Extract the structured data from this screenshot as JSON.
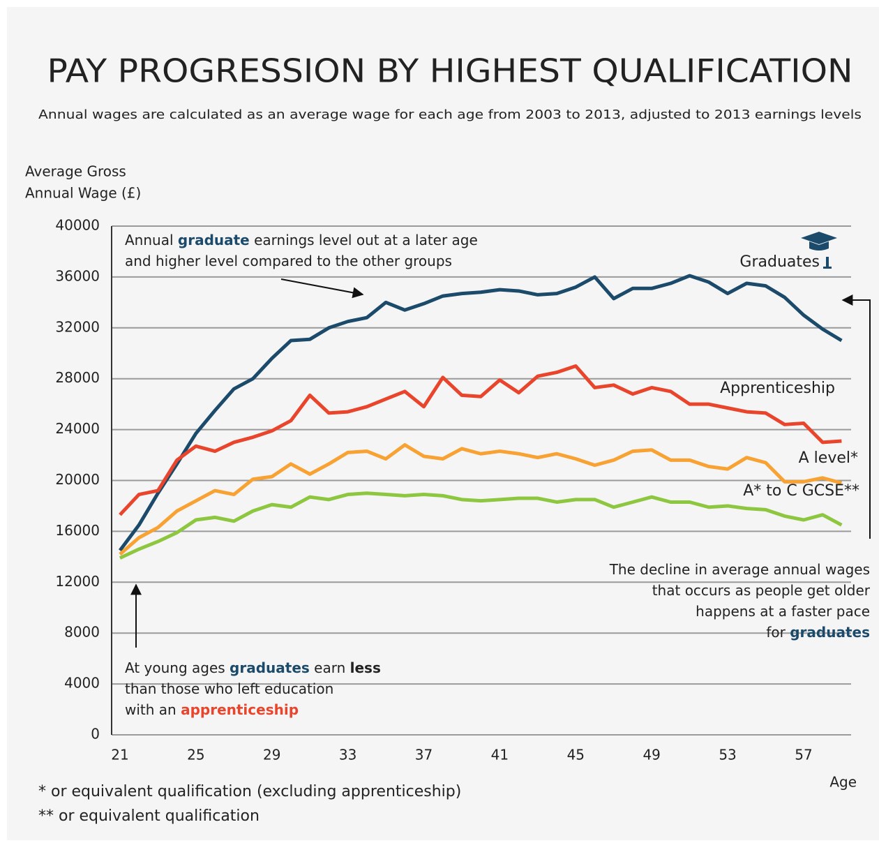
{
  "chart_data": {
    "type": "line",
    "title": "PAY PROGRESSION BY HIGHEST QUALIFICATION",
    "subtitle": "Annual wages are calculated as an average wage for each age from 2003 to 2013, adjusted to 2013 earnings levels",
    "y_label": [
      "Average Gross",
      "Annual Wage (£)"
    ],
    "x_label": "Age",
    "x": [
      21,
      22,
      23,
      24,
      25,
      26,
      27,
      28,
      29,
      30,
      31,
      32,
      33,
      34,
      35,
      36,
      37,
      38,
      39,
      40,
      41,
      42,
      43,
      44,
      45,
      46,
      47,
      48,
      49,
      50,
      51,
      52,
      53,
      54,
      55,
      56,
      57,
      58,
      59
    ],
    "series": [
      {
        "name": "Graduates",
        "color": "#1b4a6b",
        "values": [
          14500,
          16500,
          19000,
          21300,
          23700,
          25500,
          27200,
          28000,
          29600,
          31000,
          31100,
          32000,
          32500,
          32800,
          34000,
          33400,
          33900,
          34500,
          34700,
          34800,
          35000,
          34900,
          34600,
          34700,
          35200,
          36000,
          34300,
          35100,
          35100,
          35500,
          36100,
          35600,
          34700,
          35500,
          35300,
          34400,
          33000,
          31900,
          31000
        ]
      },
      {
        "name": "Apprenticeship",
        "color": "#e8452c",
        "values": [
          17300,
          18900,
          19200,
          21600,
          22700,
          22300,
          23000,
          23400,
          23900,
          24700,
          26700,
          25300,
          25400,
          25800,
          26400,
          27000,
          25800,
          28100,
          26700,
          26600,
          27900,
          26900,
          28200,
          28500,
          29000,
          27300,
          27500,
          26800,
          27300,
          27000,
          26000,
          26000,
          25700,
          25400,
          25300,
          24400,
          24500,
          23000,
          23100
        ]
      },
      {
        "name": "A level*",
        "color": "#f7a233",
        "values": [
          14200,
          15500,
          16300,
          17600,
          18400,
          19200,
          18900,
          20100,
          20300,
          21300,
          20500,
          21300,
          22200,
          22300,
          21700,
          22800,
          21900,
          21700,
          22500,
          22100,
          22300,
          22100,
          21800,
          22100,
          21700,
          21200,
          21600,
          22300,
          22400,
          21600,
          21600,
          21100,
          20900,
          21800,
          21400,
          19900,
          19900,
          20200,
          19800
        ]
      },
      {
        "name": "A* to C GCSE**",
        "color": "#8dc63f",
        "values": [
          13900,
          14600,
          15200,
          15900,
          16900,
          17100,
          16800,
          17600,
          18100,
          17900,
          18700,
          18500,
          18900,
          19000,
          18900,
          18800,
          18900,
          18800,
          18500,
          18400,
          18500,
          18600,
          18600,
          18300,
          18500,
          18500,
          17900,
          18300,
          18700,
          18300,
          18300,
          17900,
          18000,
          17800,
          17700,
          17200,
          16900,
          17300,
          16500
        ]
      }
    ],
    "xlim": [
      20.56,
      59.5
    ],
    "xticks": [
      21,
      25,
      29,
      33,
      37,
      41,
      45,
      49,
      53,
      57
    ],
    "ylim": [
      0,
      40000
    ],
    "yticks": [
      0,
      4000,
      8000,
      12000,
      16000,
      20000,
      24000,
      28000,
      32000,
      36000,
      40000
    ],
    "grid": true,
    "annotations": [
      [
        [
          {
            "text": "Annual "
          },
          {
            "text": "graduate",
            "bold": true,
            "color": "#1b4a6b"
          },
          {
            "text": " earnings level out at a later age"
          }
        ],
        [
          {
            "text": "and higher level compared to the other groups"
          }
        ]
      ],
      [
        [
          {
            "text": "At young ages "
          },
          {
            "text": "graduates",
            "bold": true,
            "color": "#1b4a6b"
          },
          {
            "text": " earn "
          },
          {
            "text": "less",
            "bold": true
          }
        ],
        [
          {
            "text": "than those who left education"
          }
        ],
        [
          {
            "text": "with an "
          },
          {
            "text": "apprenticeship",
            "bold": true,
            "color": "#e8452c"
          }
        ]
      ],
      [
        [
          {
            "text": "The decline in average annual wages"
          }
        ],
        [
          {
            "text": "that occurs as people get older"
          }
        ],
        [
          {
            "text": "happens at a faster pace"
          }
        ],
        [
          {
            "text": "for "
          },
          {
            "text": "graduates",
            "bold": true,
            "color": "#1b4a6b"
          }
        ]
      ]
    ],
    "footnotes": [
      {
        "text": "* or equivalent qualification (excluding apprenticeship)",
        "color": "#f7a233"
      },
      {
        "text": "** or equivalent qualification",
        "color": "#8dc63f"
      }
    ]
  }
}
